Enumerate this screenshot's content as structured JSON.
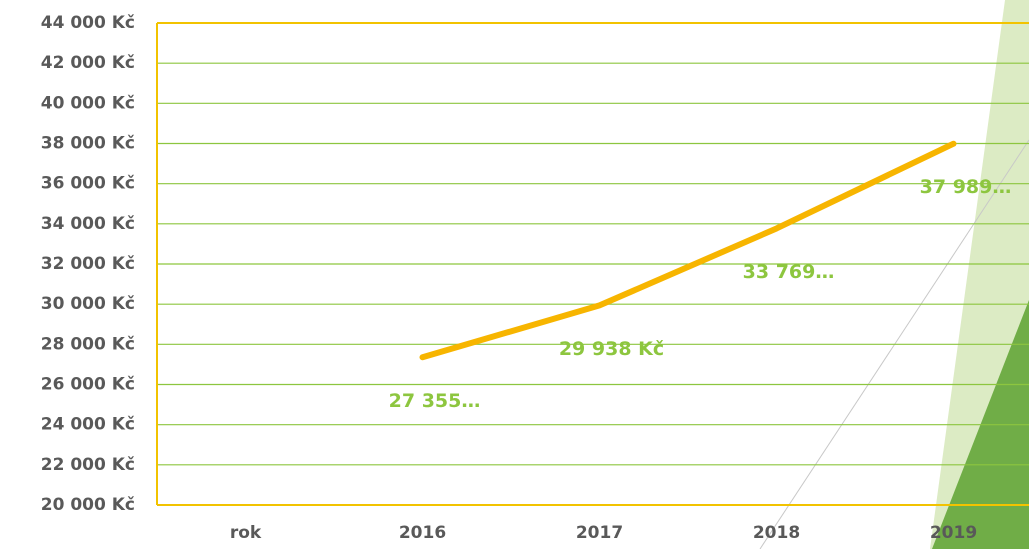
{
  "chart_data": {
    "type": "line",
    "categories": [
      "rok",
      "2016",
      "2017",
      "2018",
      "2019"
    ],
    "series": [
      {
        "color": "#f7b500",
        "values": [
          null,
          27355,
          29938,
          33769,
          37989
        ],
        "value_labels": [
          null,
          "27 355…",
          "29 938 Kč",
          "33 769…",
          "37 989…"
        ],
        "label_color": "#8dc63f"
      }
    ],
    "ylim": [
      20000,
      44000
    ],
    "yticks": [
      {
        "value": 20000,
        "label": "20 000 Kč"
      },
      {
        "value": 22000,
        "label": "22 000 Kč"
      },
      {
        "value": 24000,
        "label": "24 000 Kč"
      },
      {
        "value": 26000,
        "label": "26 000 Kč"
      },
      {
        "value": 28000,
        "label": "28 000 Kč"
      },
      {
        "value": 30000,
        "label": "30 000 Kč"
      },
      {
        "value": 32000,
        "label": "32 000 Kč"
      },
      {
        "value": 34000,
        "label": "34 000 Kč"
      },
      {
        "value": 36000,
        "label": "36 000 Kč"
      },
      {
        "value": 38000,
        "label": "38 000 Kč"
      },
      {
        "value": 40000,
        "label": "40 000 Kč"
      },
      {
        "value": 42000,
        "label": "42 000 Kč"
      },
      {
        "value": 44000,
        "label": "44 000 Kč"
      }
    ],
    "grid": true,
    "grid_color": "#8dc63f",
    "frame_color": "#f2c300"
  }
}
